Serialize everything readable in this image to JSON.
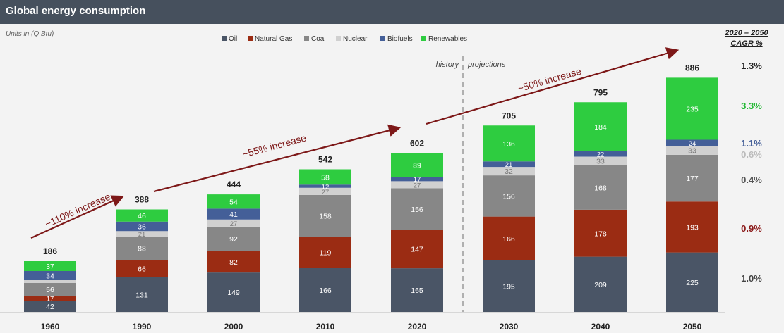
{
  "header": {
    "title": "Global energy consumption"
  },
  "units_label": "Units in (Q Btu)",
  "cagr_header": {
    "line1": "2020 – 2050",
    "line2": "CAGR %"
  },
  "chart_data": {
    "type": "bar",
    "stacked": true,
    "title": "Global energy consumption",
    "categories": [
      "1960",
      "1990",
      "2000",
      "2010",
      "2020",
      "2030",
      "2040",
      "2050"
    ],
    "series": [
      {
        "name": "Oil",
        "color": "#4a5566",
        "values": [
          42,
          131,
          149,
          166,
          165,
          195,
          209,
          225
        ]
      },
      {
        "name": "Natural Gas",
        "color": "#9b2c13",
        "values": [
          17,
          66,
          82,
          119,
          147,
          166,
          178,
          193
        ]
      },
      {
        "name": "Coal",
        "color": "#878787",
        "values": [
          56,
          88,
          92,
          158,
          156,
          156,
          168,
          177
        ]
      },
      {
        "name": "Nuclear",
        "color": "#d0d0d0",
        "values": [
          null,
          21,
          27,
          27,
          27,
          32,
          33,
          33
        ]
      },
      {
        "name": "Biofuels",
        "color": "#445f98",
        "values": [
          34,
          36,
          41,
          12,
          17,
          21,
          22,
          24
        ]
      },
      {
        "name": "Renewables",
        "color": "#2ecc40",
        "values": [
          37,
          46,
          54,
          58,
          89,
          136,
          184,
          235
        ]
      }
    ],
    "totals": [
      186,
      388,
      444,
      542,
      602,
      705,
      795,
      886
    ],
    "segment_heights": [
      37,
      34,
      56,
      4,
      17,
      42
    ],
    "legend_position": "top-center",
    "divider": {
      "after_category": "2020",
      "left_label": "history",
      "right_label": "projections"
    },
    "annotations": [
      {
        "text": "~110% increase",
        "from": "1960",
        "to": "1990"
      },
      {
        "text": "~55% increase",
        "from": "1990",
        "to": "2020"
      },
      {
        "text": "~50% increase",
        "from": "2020",
        "to": "2050"
      }
    ],
    "cagr": [
      {
        "series": "Oil",
        "value": "1.0%",
        "color": "#444444"
      },
      {
        "series": "Natural Gas",
        "value": "0.9%",
        "color": "#8b1a1a"
      },
      {
        "series": "Coal",
        "value": "0.4%",
        "color": "#555555"
      },
      {
        "series": "Nuclear",
        "value": "0.6%",
        "color": "#bbbbbb"
      },
      {
        "series": "Biofuels",
        "value": "1.1%",
        "color": "#445f98"
      },
      {
        "series": "Renewables",
        "value": "3.3%",
        "color": "#22b833"
      },
      {
        "series": "Total",
        "value": "1.3%",
        "color": "#222222"
      }
    ],
    "ylim": [
      0,
      1000
    ],
    "grid": false
  }
}
